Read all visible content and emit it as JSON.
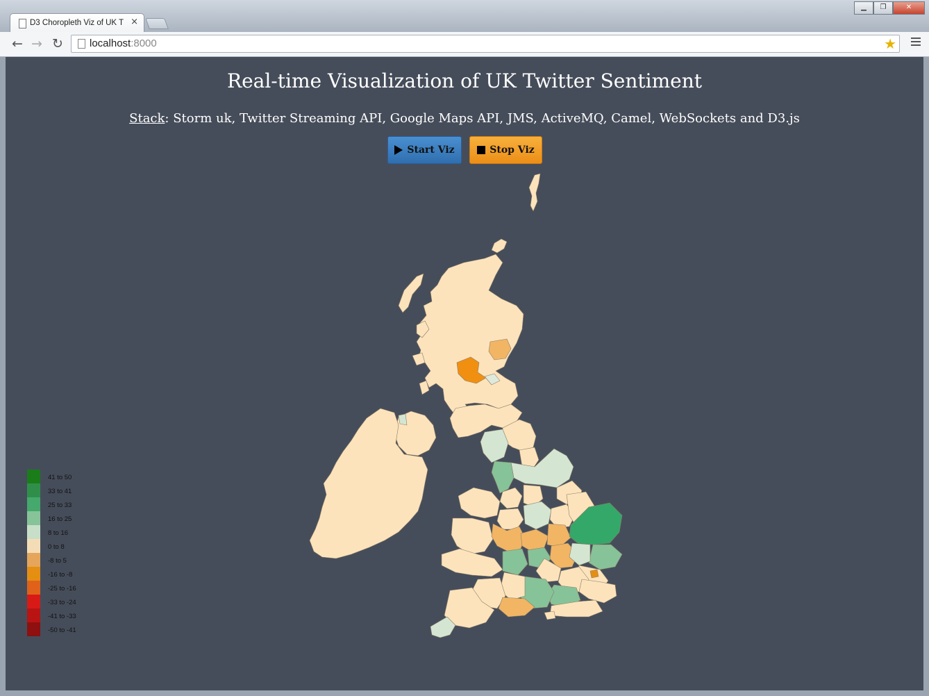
{
  "browser": {
    "tab_title": "D3 Choropleth Viz of UK T",
    "tab_close": "×",
    "url_host": "localhost",
    "url_port": ":8000",
    "back": "←",
    "forward": "→",
    "reload": "↻",
    "bookmark_star": "★",
    "window_buttons": {
      "minimize": "▁",
      "maximize": "❐",
      "close": "✕"
    }
  },
  "page": {
    "title": "Real-time Visualization of UK Twitter Sentiment",
    "stack_label": "Stack",
    "stack_text": ": Storm uk, Twitter Streaming API, Google Maps API, JMS, ActiveMQ, Camel, WebSockets and D3.js",
    "start_button": "Start Viz",
    "stop_button": "Stop Viz"
  },
  "colors": {
    "page_bg": "#464d5a",
    "start_button": "#3a7fc1",
    "stop_button": "#f0a030",
    "neutral_region": "#fce3bb"
  },
  "legend": [
    {
      "label": "41 to 50",
      "color": "#1a7d1a"
    },
    {
      "label": "33 to 41",
      "color": "#2f8f4a"
    },
    {
      "label": "25 to 33",
      "color": "#45a86c"
    },
    {
      "label": "16 to 25",
      "color": "#86c398"
    },
    {
      "label": "8 to 16",
      "color": "#c7dfc8"
    },
    {
      "label": "0 to 8",
      "color": "#f4ddb6"
    },
    {
      "label": "-8 to 5",
      "color": "#e5a55a"
    },
    {
      "label": "-16 to -8",
      "color": "#e48e12"
    },
    {
      "label": "-25 to -16",
      "color": "#e0611a"
    },
    {
      "label": "-33 to -24",
      "color": "#d81a16"
    },
    {
      "label": "-41 to -33",
      "color": "#b81414"
    },
    {
      "label": "-50 to -41",
      "color": "#8e1010"
    }
  ]
}
